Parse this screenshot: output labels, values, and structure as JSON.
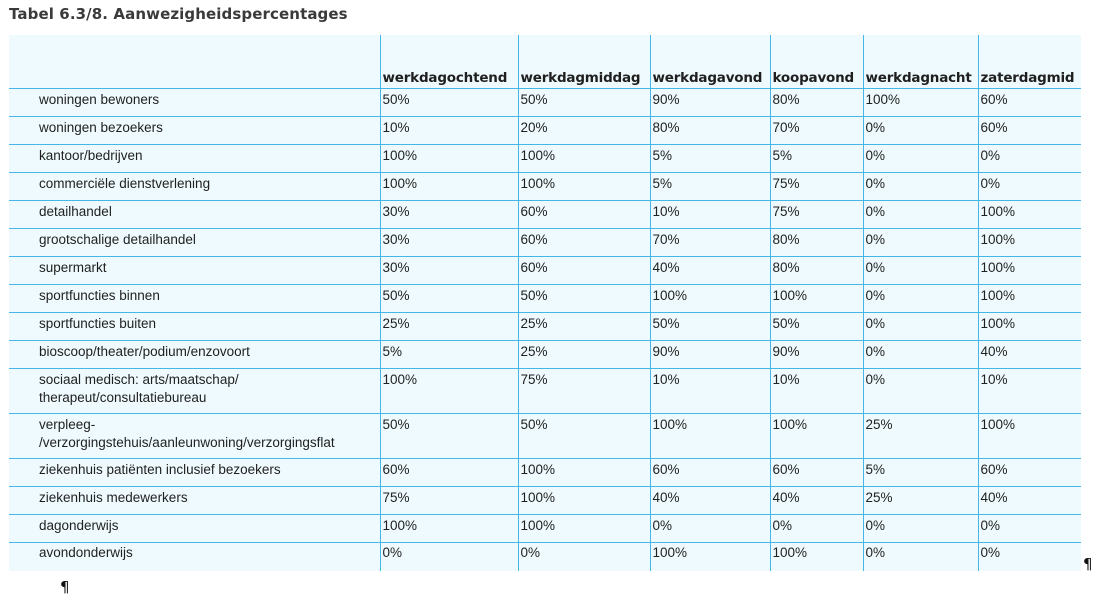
{
  "title": "Tabel 6.3/8. Aanwezigheidspercentages",
  "columns": [
    "werkdagochtend",
    "werkdagmiddag",
    "werkdagavond",
    "koopavond",
    "werkdagnacht",
    "zaterdagmid"
  ],
  "rows": [
    {
      "label": [
        "woningen bewoners"
      ],
      "values": [
        "50%",
        "50%",
        "90%",
        "80%",
        "100%",
        "60%"
      ]
    },
    {
      "label": [
        "woningen bezoekers"
      ],
      "values": [
        "10%",
        "20%",
        "80%",
        "70%",
        "0%",
        "60%"
      ]
    },
    {
      "label": [
        "kantoor/bedrijven"
      ],
      "values": [
        "100%",
        "100%",
        "5%",
        "5%",
        "0%",
        "0%"
      ]
    },
    {
      "label": [
        "commerciële dienstverlening"
      ],
      "values": [
        "100%",
        "100%",
        "5%",
        "75%",
        "0%",
        "0%"
      ]
    },
    {
      "label": [
        "detailhandel"
      ],
      "values": [
        "30%",
        "60%",
        "10%",
        "75%",
        "0%",
        "100%"
      ]
    },
    {
      "label": [
        "grootschalige detailhandel"
      ],
      "values": [
        "30%",
        "60%",
        "70%",
        "80%",
        "0%",
        "100%"
      ]
    },
    {
      "label": [
        "supermarkt"
      ],
      "values": [
        "30%",
        "60%",
        "40%",
        "80%",
        "0%",
        "100%"
      ]
    },
    {
      "label": [
        "sportfuncties binnen"
      ],
      "values": [
        "50%",
        "50%",
        "100%",
        "100%",
        "0%",
        "100%"
      ]
    },
    {
      "label": [
        "sportfuncties buiten"
      ],
      "values": [
        "25%",
        "25%",
        "50%",
        "50%",
        "0%",
        "100%"
      ]
    },
    {
      "label": [
        "bioscoop/theater/podium/enzovoort"
      ],
      "values": [
        "5%",
        "25%",
        "90%",
        "90%",
        "0%",
        "40%"
      ]
    },
    {
      "label": [
        "sociaal medisch: arts/maatschap/",
        "therapeut/consultatiebureau"
      ],
      "values": [
        "100%",
        "75%",
        "10%",
        "10%",
        "0%",
        "10%"
      ]
    },
    {
      "label": [
        "verpleeg-",
        "/verzorgingstehuis/aanleunwoning/verzorgingsflat"
      ],
      "values": [
        "50%",
        "50%",
        "100%",
        "100%",
        "25%",
        "100%"
      ]
    },
    {
      "label": [
        "ziekenhuis patiënten inclusief bezoekers"
      ],
      "values": [
        "60%",
        "100%",
        "60%",
        "60%",
        "5%",
        "60%"
      ]
    },
    {
      "label": [
        "ziekenhuis medewerkers"
      ],
      "values": [
        "75%",
        "100%",
        "40%",
        "40%",
        "25%",
        "40%"
      ]
    },
    {
      "label": [
        "dagonderwijs"
      ],
      "values": [
        "100%",
        "100%",
        "0%",
        "0%",
        "0%",
        "0%"
      ]
    },
    {
      "label": [
        "avondonderwijs"
      ],
      "values": [
        "0%",
        "0%",
        "100%",
        "100%",
        "0%",
        "0%"
      ]
    }
  ],
  "pilcrow": "¶"
}
